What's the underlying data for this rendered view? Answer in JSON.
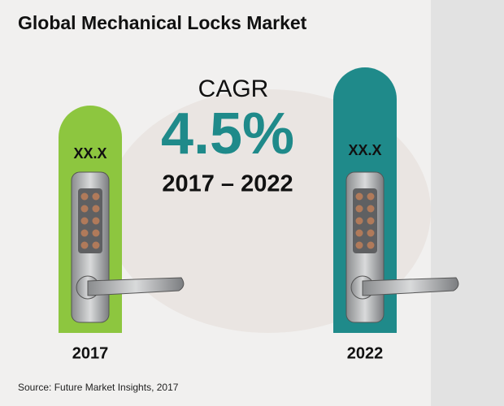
{
  "header": {
    "title": "Global Mechanical Locks Market"
  },
  "cagr": {
    "label": "CAGR",
    "value": "4.5%",
    "period": "2017 – 2022"
  },
  "bars": [
    {
      "year": "2017",
      "label": "XX.X",
      "color": "#8dc63f"
    },
    {
      "year": "2022",
      "label": "XX.X",
      "color": "#1f8a8a"
    }
  ],
  "footer": {
    "source": "Source: Future Market Insights, 2017"
  }
}
